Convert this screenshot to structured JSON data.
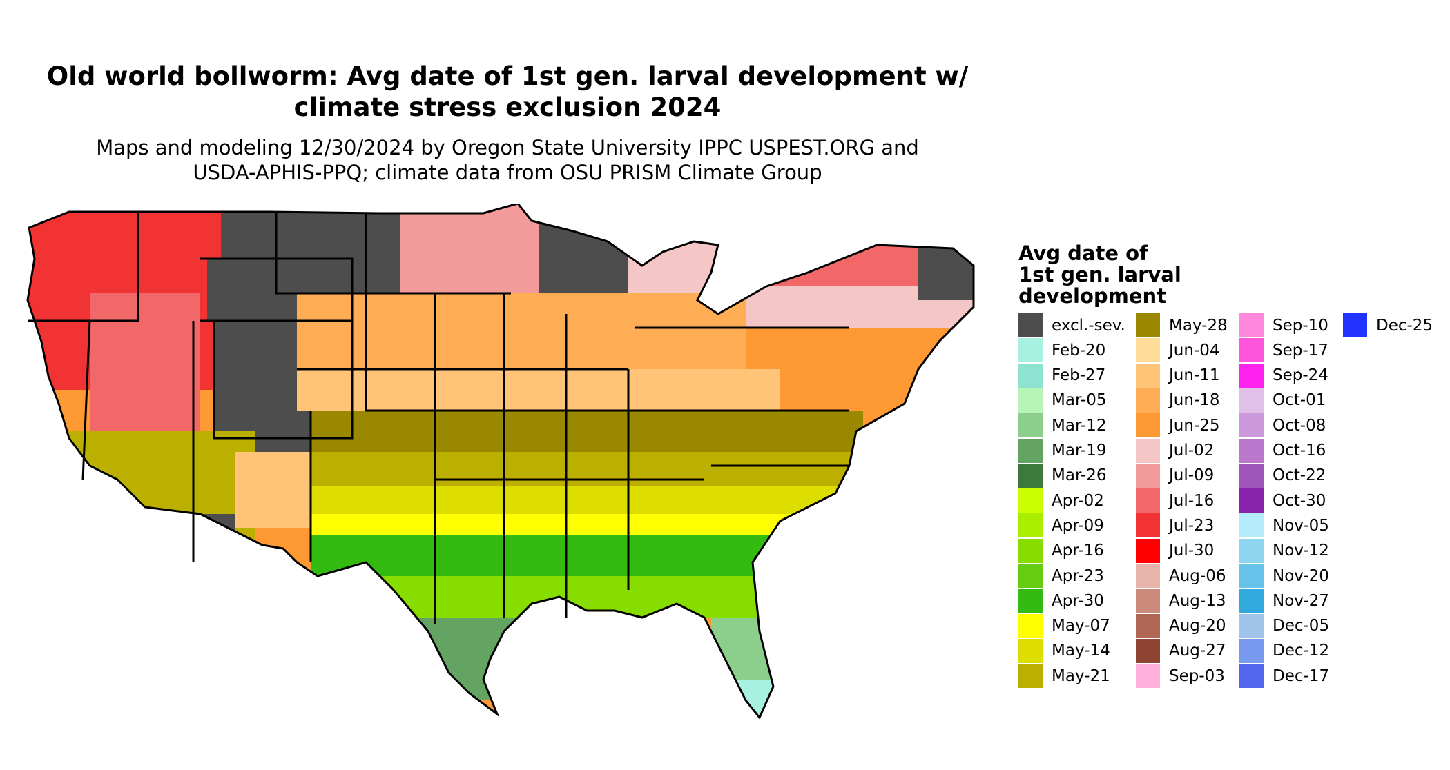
{
  "title_line1": "Old world bollworm: Avg date of 1st gen. larval development w/",
  "title_line2": "climate stress exclusion 2024",
  "subtitle_line1": "Maps and modeling 12/30/2024 by Oregon State University IPPC USPEST.ORG and",
  "subtitle_line2": "USDA-APHIS-PPQ; climate data from OSU PRISM Climate Group",
  "legend": {
    "title_line1": "Avg date of",
    "title_line2": "1st gen. larval",
    "title_line3": "development",
    "items": [
      {
        "label": "excl.-sev.",
        "color": "#4d4d4d"
      },
      {
        "label": "Feb-20",
        "color": "#a8f0e0"
      },
      {
        "label": "Feb-27",
        "color": "#8ee3d0"
      },
      {
        "label": "Mar-05",
        "color": "#b7f5b7"
      },
      {
        "label": "Mar-12",
        "color": "#8ccf8c"
      },
      {
        "label": "Mar-19",
        "color": "#63a463"
      },
      {
        "label": "Mar-26",
        "color": "#3c7a3c"
      },
      {
        "label": "Apr-02",
        "color": "#ccff00"
      },
      {
        "label": "Apr-09",
        "color": "#aaee00"
      },
      {
        "label": "Apr-16",
        "color": "#88dd00"
      },
      {
        "label": "Apr-23",
        "color": "#66cc11"
      },
      {
        "label": "Apr-30",
        "color": "#33bb11"
      },
      {
        "label": "May-07",
        "color": "#ffff00"
      },
      {
        "label": "May-14",
        "color": "#dddd00"
      },
      {
        "label": "May-21",
        "color": "#bbb000"
      },
      {
        "label": "May-28",
        "color": "#998800"
      },
      {
        "label": "Jun-04",
        "color": "#ffdd99"
      },
      {
        "label": "Jun-11",
        "color": "#ffc477"
      },
      {
        "label": "Jun-18",
        "color": "#ffad55"
      },
      {
        "label": "Jun-25",
        "color": "#ff9933"
      },
      {
        "label": "Jul-02",
        "color": "#f5c6c6"
      },
      {
        "label": "Jul-09",
        "color": "#f39a9a"
      },
      {
        "label": "Jul-16",
        "color": "#f26868"
      },
      {
        "label": "Jul-23",
        "color": "#f23333"
      },
      {
        "label": "Jul-30",
        "color": "#ff0000"
      },
      {
        "label": "Aug-06",
        "color": "#e8b4aa"
      },
      {
        "label": "Aug-13",
        "color": "#cc8a7c"
      },
      {
        "label": "Aug-20",
        "color": "#b06655"
      },
      {
        "label": "Aug-27",
        "color": "#8f4433"
      },
      {
        "label": "Sep-03",
        "color": "#ffb0dd"
      },
      {
        "label": "Sep-10",
        "color": "#ff88dd"
      },
      {
        "label": "Sep-17",
        "color": "#ff55dd"
      },
      {
        "label": "Sep-24",
        "color": "#ff22ee"
      },
      {
        "label": "Oct-01",
        "color": "#e0c0e8"
      },
      {
        "label": "Oct-08",
        "color": "#cc99dd"
      },
      {
        "label": "Oct-16",
        "color": "#bb77cc"
      },
      {
        "label": "Oct-22",
        "color": "#a055bb"
      },
      {
        "label": "Oct-30",
        "color": "#8822aa"
      },
      {
        "label": "Nov-05",
        "color": "#b3ebfa"
      },
      {
        "label": "Nov-12",
        "color": "#8ed5f0"
      },
      {
        "label": "Nov-20",
        "color": "#66c2e8"
      },
      {
        "label": "Nov-27",
        "color": "#33aadd"
      },
      {
        "label": "Dec-05",
        "color": "#a0c4ea"
      },
      {
        "label": "Dec-12",
        "color": "#7799ee"
      },
      {
        "label": "Dec-17",
        "color": "#5566ee"
      },
      {
        "label": "Dec-25",
        "color": "#2233ff"
      }
    ]
  }
}
